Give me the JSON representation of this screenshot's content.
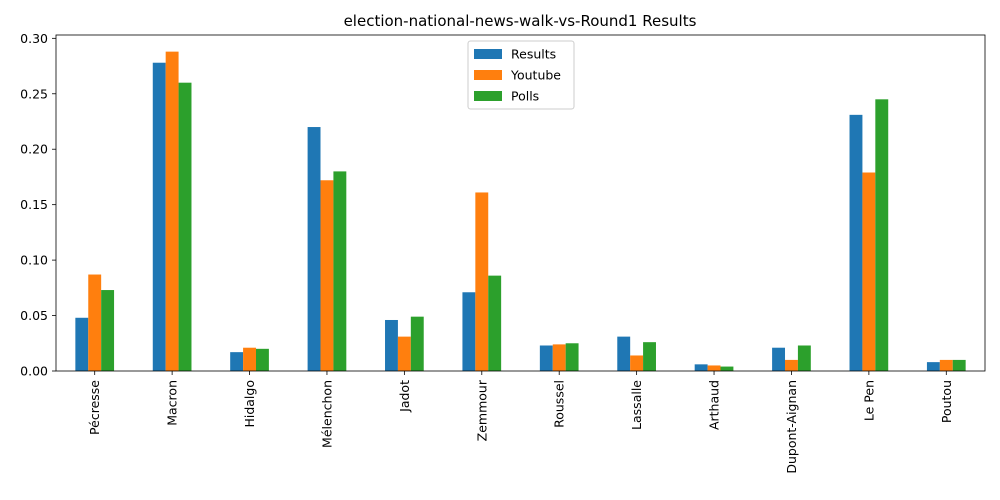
{
  "chart_data": {
    "type": "bar",
    "title": "election-national-news-walk-vs-Round1 Results",
    "xlabel": "",
    "ylabel": "",
    "ylim": [
      0,
      0.303
    ],
    "yticks": [
      "0.00",
      "0.05",
      "0.10",
      "0.15",
      "0.20",
      "0.25",
      "0.30"
    ],
    "grid": false,
    "legend_position": "top-center",
    "categories": [
      "Pécresse",
      "Macron",
      "Hidalgo",
      "Mélenchon",
      "Jadot",
      "Zemmour",
      "Roussel",
      "Lassalle",
      "Arthaud",
      "Dupont-Aignan",
      "Le Pen",
      "Poutou"
    ],
    "series": [
      {
        "name": "Results",
        "color": "#1f77b4",
        "values": [
          0.048,
          0.278,
          0.017,
          0.22,
          0.046,
          0.071,
          0.023,
          0.031,
          0.006,
          0.021,
          0.231,
          0.008
        ]
      },
      {
        "name": "Youtube",
        "color": "#ff7f0e",
        "values": [
          0.087,
          0.288,
          0.021,
          0.172,
          0.031,
          0.161,
          0.024,
          0.014,
          0.005,
          0.01,
          0.179,
          0.01
        ]
      },
      {
        "name": "Polls",
        "color": "#2ca02c",
        "values": [
          0.073,
          0.26,
          0.02,
          0.18,
          0.049,
          0.086,
          0.025,
          0.026,
          0.004,
          0.023,
          0.245,
          0.01
        ]
      }
    ]
  }
}
